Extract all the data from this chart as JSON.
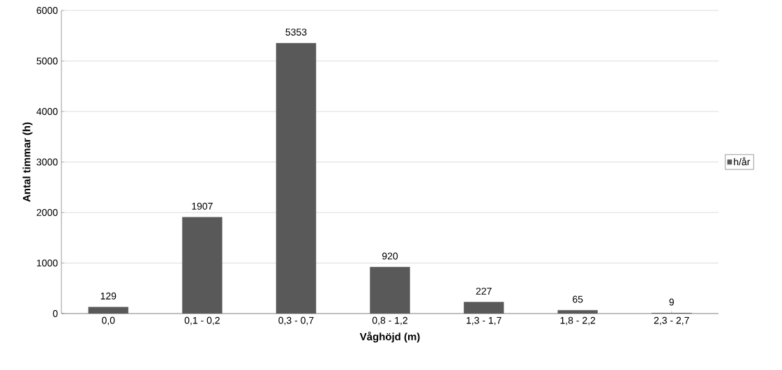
{
  "chart_data": {
    "type": "bar",
    "xlabel": "Våghöjd (m)",
    "ylabel": "Antal timmar (h)",
    "categories": [
      "0,0",
      "0,1 - 0,2",
      "0,3 - 0,7",
      "0,8 - 1,2",
      "1,3 - 1,7",
      "1,8 - 2,2",
      "2,3 - 2,7"
    ],
    "series": [
      {
        "name": "h/år",
        "color": "#595959",
        "values": [
          129,
          1907,
          5353,
          920,
          227,
          65,
          9
        ]
      }
    ],
    "ylim": [
      0,
      6000
    ],
    "yticks": [
      0,
      1000,
      2000,
      3000,
      4000,
      5000,
      6000
    ],
    "grid": "y",
    "legend": "right",
    "data_labels": true
  }
}
